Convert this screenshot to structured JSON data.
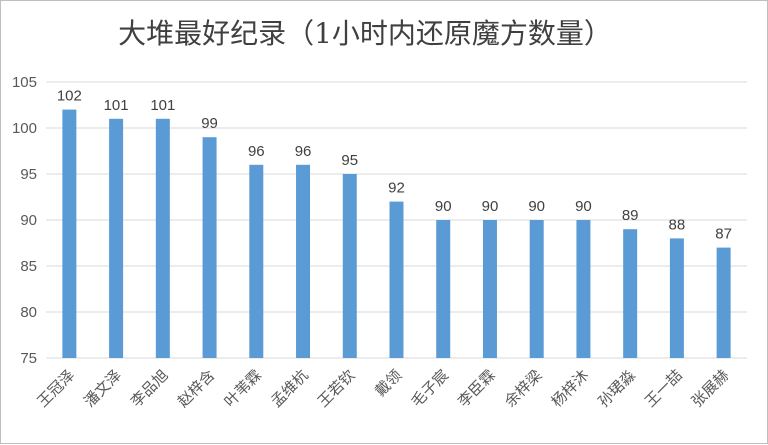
{
  "chart_data": {
    "type": "bar",
    "title": "大堆最好纪录（1小时内还原魔方数量）",
    "categories": [
      "王冠泽",
      "潘文泽",
      "李品旭",
      "赵梓含",
      "叶苇霖",
      "孟维杭",
      "王若钦",
      "戴领",
      "毛子宸",
      "李臣霖",
      "余梓梁",
      "杨梓沐",
      "孙珺淼",
      "王一喆",
      "张展赫"
    ],
    "values": [
      102,
      101,
      101,
      99,
      96,
      96,
      95,
      92,
      90,
      90,
      90,
      90,
      89,
      88,
      87
    ],
    "ylim": [
      75,
      105
    ],
    "yticks": [
      75,
      80,
      85,
      90,
      95,
      100,
      105
    ],
    "grid": true,
    "legend": "none",
    "bar_color": "#5b9bd5",
    "grid_color": "#d9d9d9"
  }
}
